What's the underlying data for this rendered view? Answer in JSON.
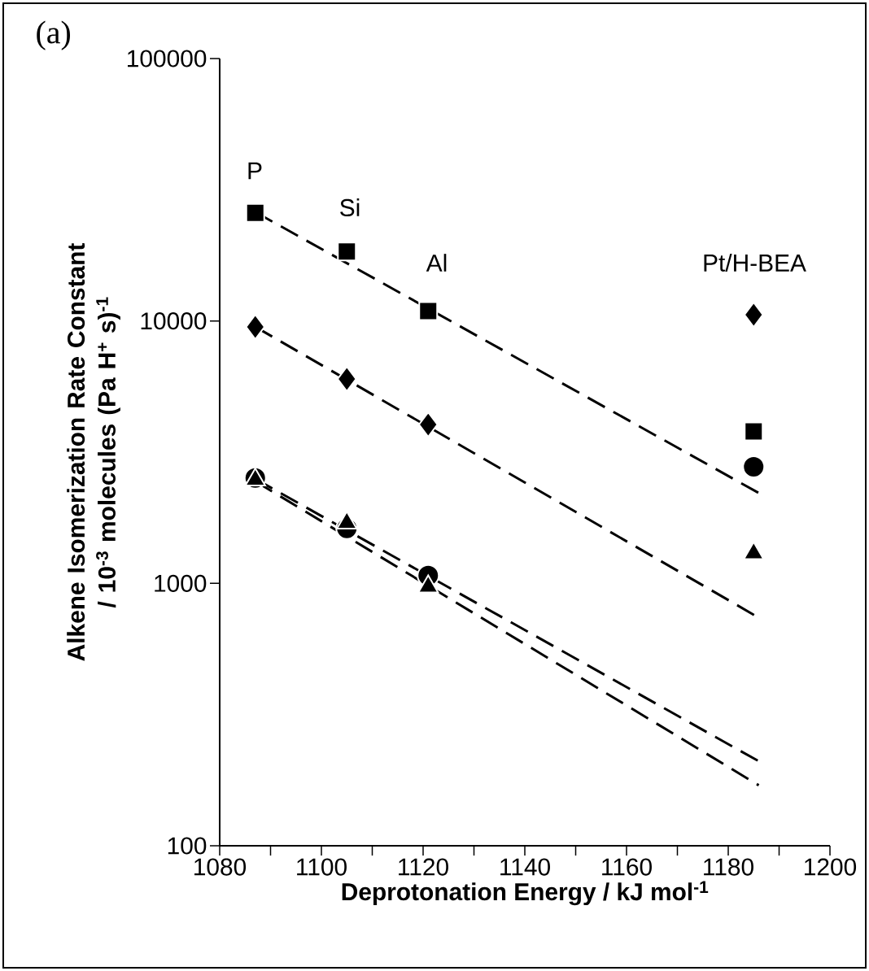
{
  "chart_data": {
    "type": "scatter",
    "xlabel": "**Deprotonation Energy / kJ mol$^{-1}$**",
    "ylabel": "**Alkene Isomerization Rate Constant / 10$^{-3}$ molecules (Pa H$^{+}$ s)$^{-1}$**",
    "xlim": [
      1080,
      1200
    ],
    "xticks": [
      1080,
      {
        "value": 1090,
        "label": null
      },
      1100,
      {
        "value": 1110,
        "label": null
      },
      1120,
      {
        "value": 1130,
        "label": null
      },
      1140,
      {
        "value": 1150,
        "label": null
      },
      1160,
      {
        "value": 1170,
        "label": null
      },
      1180,
      {
        "value": 1190,
        "label": null
      },
      1200
    ],
    "ylim": [
      100,
      100000
    ],
    "yticks": [
      100,
      1000,
      10000,
      100000
    ],
    "log": "y",
    "series": [
      {
        "marker": "square",
        "color": "#000000",
        "x": [
          1087,
          1105,
          1121,
          1185
        ],
        "values": [
          25800,
          18400,
          10900,
          3790
        ]
      },
      {
        "marker": "diamond",
        "color": "#000000",
        "x": [
          1087,
          1105,
          1121,
          1185
        ],
        "values": [
          9490,
          6010,
          4030,
          10560
        ]
      },
      {
        "marker": "circle",
        "color": "#000000",
        "x": [
          1087,
          1105,
          1121,
          1185
        ],
        "values": [
          2520,
          1620,
          1070,
          2780
        ]
      },
      {
        "marker": "triangle",
        "color": "#000000",
        "x": [
          1087,
          1105,
          1121,
          1185
        ],
        "values": [
          2480,
          1700,
          970,
          1300
        ]
      },
      {
        "type": "line",
        "line_style": "dashed",
        "color": "#000000",
        "x": [
          1087,
          1186
        ],
        "values": [
          26000,
          2210
        ]
      },
      {
        "type": "line",
        "line_style": "dashed",
        "color": "#000000",
        "x": [
          1087,
          1186
        ],
        "values": [
          9500,
          740
        ]
      },
      {
        "type": "line",
        "line_style": "dashed",
        "color": "#000000",
        "x": [
          1087,
          1186
        ],
        "values": [
          2500,
          210
        ]
      },
      {
        "type": "line",
        "line_style": "dashed",
        "color": "#000000",
        "x": [
          1087,
          1186
        ],
        "values": [
          2450,
          170
        ]
      }
    ],
    "annotations": [
      "(a)",
      "P",
      "Si",
      "Al",
      "Pt/H-BEA"
    ]
  }
}
